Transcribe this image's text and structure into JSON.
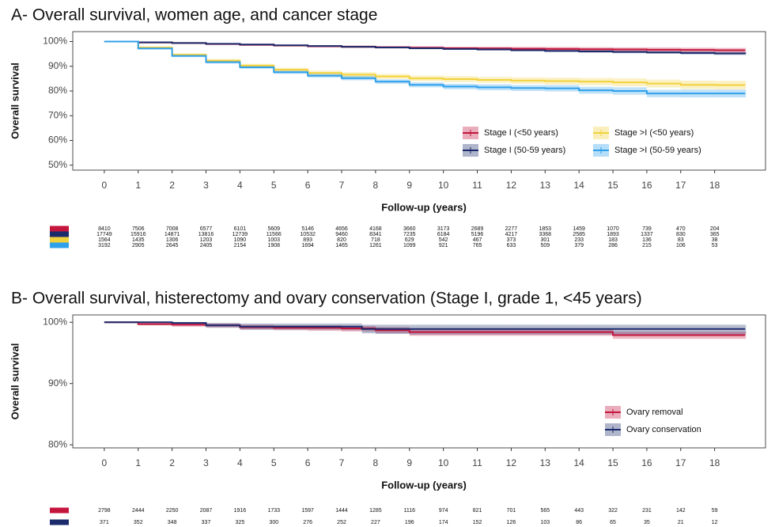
{
  "chart_data": [
    {
      "type": "line",
      "step": true,
      "title": "A- Overall survival, women age, and cancer stage",
      "xlabel": "Follow-up (years)",
      "ylabel": "Overall survival",
      "x": [
        0,
        1,
        2,
        3,
        4,
        5,
        6,
        7,
        8,
        9,
        10,
        11,
        12,
        13,
        14,
        15,
        16,
        17,
        18,
        18.9
      ],
      "xlim": [
        -0.93,
        19.5
      ],
      "xticks": [
        0,
        1,
        2,
        3,
        4,
        5,
        6,
        7,
        8,
        9,
        10,
        11,
        12,
        13,
        14,
        15,
        16,
        17,
        18
      ],
      "ylim": [
        48,
        104
      ],
      "yticks": [
        {
          "value": 50,
          "label": "50%"
        },
        {
          "value": 60,
          "label": "60%"
        },
        {
          "value": 70,
          "label": "70%"
        },
        {
          "value": 80,
          "label": "80%"
        },
        {
          "value": 90,
          "label": "90%"
        },
        {
          "value": 100,
          "label": "100%"
        }
      ],
      "legend": "lower right",
      "series": [
        {
          "name": "Stage I (<50 years)",
          "color": "#c4153d",
          "values": [
            100,
            99.6,
            99.4,
            99,
            98.7,
            98.4,
            98.1,
            97.9,
            97.7,
            97.5,
            97.3,
            97.2,
            97.1,
            97,
            96.9,
            96.8,
            96.7,
            96.6,
            96.5,
            96.5
          ],
          "lower": [
            100,
            99.4,
            99.1,
            98.7,
            98.3,
            98,
            97.7,
            97.4,
            97.2,
            96.9,
            96.7,
            96.5,
            96.4,
            96.2,
            96.1,
            96,
            95.8,
            95.7,
            95.6,
            95.6
          ],
          "upper": [
            100,
            99.8,
            99.7,
            99.3,
            99.1,
            98.8,
            98.5,
            98.4,
            98.2,
            98.1,
            97.9,
            97.9,
            97.8,
            97.8,
            97.7,
            97.6,
            97.6,
            97.5,
            97.4,
            97.4
          ],
          "at_risk": [
            8410,
            7506,
            7008,
            6577,
            6101,
            5609,
            5146,
            4656,
            4168,
            3660,
            3173,
            2689,
            2277,
            1853,
            1459,
            1070,
            739,
            470,
            204
          ]
        },
        {
          "name": "Stage I (50-59 years)",
          "color": "#1b2a6b",
          "values": [
            100,
            99.7,
            99.4,
            99.1,
            98.8,
            98.5,
            98.2,
            97.9,
            97.6,
            97.3,
            97,
            96.8,
            96.5,
            96.2,
            96,
            95.8,
            95.6,
            95.4,
            95.2,
            95
          ],
          "lower": [
            100,
            99.6,
            99.2,
            98.9,
            98.6,
            98.3,
            98,
            97.6,
            97.3,
            97,
            96.7,
            96.4,
            96.1,
            95.8,
            95.5,
            95.3,
            95.1,
            94.8,
            94.6,
            94.4
          ],
          "upper": [
            100,
            99.8,
            99.6,
            99.3,
            99,
            98.7,
            98.4,
            98.2,
            97.9,
            97.6,
            97.3,
            97.2,
            96.9,
            96.6,
            96.5,
            96.3,
            96.1,
            96,
            95.8,
            95.6
          ],
          "at_risk": [
            17749,
            15916,
            14871,
            13816,
            12739,
            11566,
            10532,
            9460,
            8341,
            7235,
            6184,
            5196,
            4217,
            3368,
            2585,
            1893,
            1337,
            830,
            365
          ]
        },
        {
          "name": "Stage >I (<50 years)",
          "color": "#f2d23c",
          "values": [
            100,
            97.6,
            94.7,
            92.3,
            90.3,
            88.6,
            87.3,
            86.6,
            85.9,
            85.1,
            84.8,
            84.5,
            84.2,
            84,
            83.8,
            83.5,
            83,
            82.5,
            82.4,
            82.4
          ],
          "lower": [
            100,
            97.2,
            94.2,
            91.7,
            89.6,
            87.8,
            86.4,
            85.6,
            84.9,
            84,
            83.6,
            83.3,
            82.9,
            82.6,
            82.3,
            81.9,
            81.4,
            80.8,
            80.7,
            80.7
          ],
          "upper": [
            100,
            98,
            95.2,
            92.9,
            91,
            89.4,
            88.2,
            87.6,
            86.9,
            86.2,
            86,
            85.7,
            85.5,
            85.4,
            85.3,
            85.1,
            84.6,
            84.2,
            84.1,
            84.1
          ],
          "at_risk": [
            1564,
            1435,
            1306,
            1203,
            1090,
            1003,
            893,
            820,
            718,
            629,
            542,
            467,
            373,
            301,
            233,
            183,
            136,
            83,
            38
          ]
        },
        {
          "name": "Stage >I (50-59 years)",
          "color": "#2fa0ea",
          "values": [
            100,
            97.2,
            94.2,
            91.7,
            89.6,
            87.6,
            86.2,
            85.2,
            83.8,
            82.5,
            81.8,
            81.5,
            81.2,
            81.1,
            80.3,
            80,
            79,
            79,
            79,
            79
          ],
          "lower": [
            100,
            96.8,
            93.7,
            91.1,
            89,
            86.9,
            85.4,
            84.3,
            82.9,
            81.5,
            80.7,
            80.3,
            80,
            79.8,
            78.9,
            78.5,
            77.5,
            77.4,
            77.4,
            77.4
          ],
          "upper": [
            100,
            97.6,
            94.7,
            92.3,
            90.2,
            88.3,
            87,
            86.1,
            84.7,
            83.5,
            82.9,
            82.7,
            82.4,
            82.4,
            81.7,
            81.5,
            80.5,
            80.6,
            80.6,
            80.6
          ],
          "at_risk": [
            3192,
            2905,
            2645,
            2405,
            2154,
            1908,
            1694,
            1465,
            1261,
            1099,
            921,
            765,
            633,
            509,
            379,
            286,
            215,
            106,
            53
          ]
        }
      ]
    },
    {
      "type": "line",
      "step": true,
      "title": "B- Overall survival, histerectomy and ovary conservation (Stage I, grade 1, <45 years)",
      "xlabel": "Follow-up (years)",
      "ylabel": "Overall survival",
      "x": [
        0,
        1,
        2,
        3,
        4,
        5,
        6,
        7,
        7.6,
        8,
        9,
        10,
        11,
        12,
        13,
        14,
        15,
        16,
        17,
        18,
        18.9
      ],
      "xlim": [
        -0.93,
        19.5
      ],
      "xticks": [
        0,
        1,
        2,
        3,
        4,
        5,
        6,
        7,
        8,
        9,
        10,
        11,
        12,
        13,
        14,
        15,
        16,
        17,
        18
      ],
      "ylim": [
        79.5,
        101.2
      ],
      "yticks": [
        {
          "value": 80,
          "label": "80%"
        },
        {
          "value": 90,
          "label": "90%"
        },
        {
          "value": 100,
          "label": "100%"
        }
      ],
      "legend": "lower right",
      "series": [
        {
          "name": "Ovary removal",
          "color": "#c4153d",
          "values": [
            100,
            99.7,
            99.6,
            99.5,
            99.2,
            99.1,
            99.1,
            99,
            99,
            98.7,
            98.4,
            98.4,
            98.4,
            98.4,
            98.4,
            98.4,
            97.9,
            97.9,
            97.9,
            97.9,
            97.9
          ],
          "lower": [
            100,
            99.5,
            99.3,
            99.2,
            98.8,
            98.7,
            98.6,
            98.5,
            98.5,
            98.2,
            97.8,
            97.8,
            97.8,
            97.8,
            97.8,
            97.8,
            97.3,
            97.3,
            97.3,
            97.3,
            97.3
          ],
          "upper": [
            100,
            99.9,
            99.9,
            99.8,
            99.6,
            99.5,
            99.5,
            99.4,
            99.4,
            99.2,
            99,
            99,
            99,
            99,
            99,
            99,
            98.5,
            98.5,
            98.5,
            98.5,
            98.5
          ],
          "at_risk": [
            2798,
            2444,
            2250,
            2087,
            1916,
            1733,
            1597,
            1444,
            1285,
            1116,
            974,
            821,
            701,
            565,
            443,
            322,
            231,
            142,
            59
          ]
        },
        {
          "name": "Ovary conservation",
          "color": "#1b2a6b",
          "values": [
            100,
            100,
            99.9,
            99.5,
            99.3,
            99.3,
            99.3,
            99.3,
            98.9,
            98.9,
            98.9,
            98.9,
            98.9,
            98.9,
            98.9,
            98.9,
            98.9,
            98.9,
            98.9,
            98.9,
            98.9
          ],
          "lower": [
            100,
            100,
            99.6,
            99.1,
            98.8,
            98.8,
            98.8,
            98.7,
            98.2,
            98.1,
            98,
            98,
            98,
            98,
            98,
            98,
            98,
            98,
            98,
            98,
            98
          ],
          "upper": [
            100,
            100,
            100,
            99.9,
            99.8,
            99.8,
            99.8,
            99.8,
            99.6,
            99.6,
            99.6,
            99.6,
            99.6,
            99.6,
            99.6,
            99.6,
            99.6,
            99.6,
            99.6,
            99.6,
            99.6
          ],
          "at_risk": [
            371,
            352,
            348,
            337,
            325,
            300,
            276,
            252,
            227,
            196,
            174,
            152,
            126,
            103,
            86,
            65,
            35,
            21,
            12
          ]
        }
      ]
    }
  ]
}
